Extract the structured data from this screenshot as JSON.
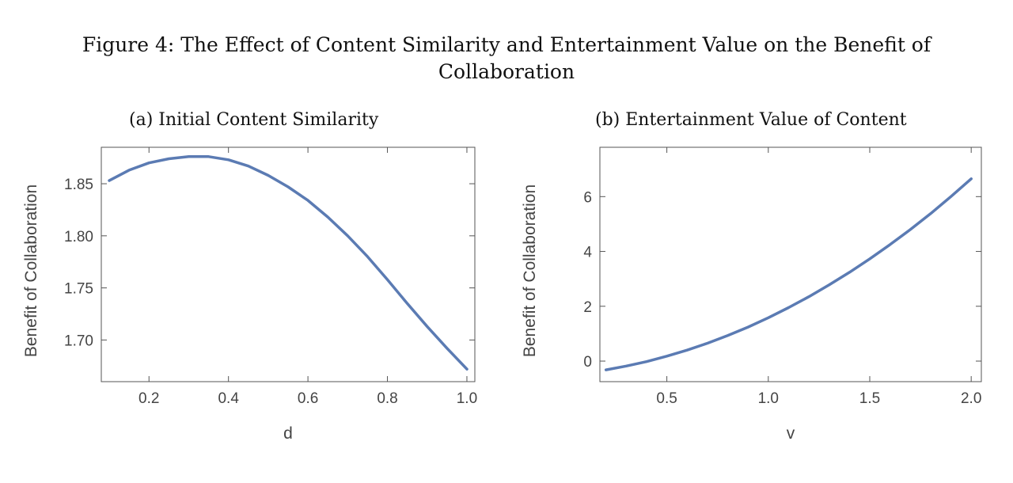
{
  "figure": {
    "title_line1": "Figure 4: The Effect of Content Similarity and Entertainment Value on the Benefit of",
    "title_line2": "Collaboration"
  },
  "chart_data": [
    {
      "type": "line",
      "title": "(a) Initial Content Similarity",
      "xlabel": "d",
      "ylabel": "Benefit of Collaboration",
      "xlim": [
        0.08,
        1.02
      ],
      "ylim": [
        1.66,
        1.885
      ],
      "xticks": [
        "0.2",
        "0.4",
        "0.6",
        "0.8",
        "1.0"
      ],
      "yticks": [
        "1.70",
        "1.75",
        "1.80",
        "1.85"
      ],
      "xtick_values": [
        0.2,
        0.4,
        0.6,
        0.8,
        1.0
      ],
      "ytick_values": [
        1.7,
        1.75,
        1.8,
        1.85
      ],
      "grid": false,
      "line_color": "#5b7bb3",
      "series": [
        {
          "x": [
            0.1,
            0.15,
            0.2,
            0.25,
            0.3,
            0.35,
            0.4,
            0.45,
            0.5,
            0.55,
            0.6,
            0.65,
            0.7,
            0.75,
            0.8,
            0.85,
            0.9,
            0.95,
            1.0
          ],
          "y": [
            1.853,
            1.863,
            1.87,
            1.874,
            1.876,
            1.876,
            1.873,
            1.867,
            1.858,
            1.847,
            1.834,
            1.818,
            1.8,
            1.78,
            1.758,
            1.735,
            1.713,
            1.692,
            1.672
          ]
        }
      ]
    },
    {
      "type": "line",
      "title": "(b) Entertainment Value of Content",
      "xlabel": "v",
      "ylabel": "Benefit of Collaboration",
      "xlim": [
        0.17,
        2.05
      ],
      "ylim": [
        -0.75,
        7.8
      ],
      "xticks": [
        "0.5",
        "1.0",
        "1.5",
        "2.0"
      ],
      "yticks": [
        "0",
        "2",
        "4",
        "6"
      ],
      "xtick_values": [
        0.5,
        1.0,
        1.5,
        2.0
      ],
      "ytick_values": [
        0,
        2,
        4,
        6
      ],
      "grid": false,
      "line_color": "#5b7bb3",
      "series": [
        {
          "x": [
            0.2,
            0.3,
            0.4,
            0.5,
            0.6,
            0.7,
            0.8,
            0.9,
            1.0,
            1.1,
            1.2,
            1.3,
            1.4,
            1.5,
            1.6,
            1.7,
            1.8,
            1.9,
            2.0
          ],
          "y": [
            -0.32,
            -0.18,
            -0.02,
            0.18,
            0.4,
            0.65,
            0.93,
            1.24,
            1.58,
            1.95,
            2.35,
            2.78,
            3.24,
            3.73,
            4.25,
            4.8,
            5.38,
            6.0,
            6.65
          ]
        }
      ]
    }
  ]
}
